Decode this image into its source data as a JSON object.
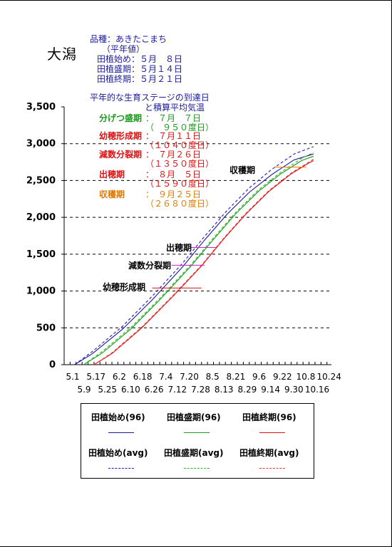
{
  "station": "大潟",
  "info": {
    "variety": "品種：あきたこまち",
    "normal": "（平年値）",
    "start": "田植始め：５月　８日",
    "peak": "田植盛期：５月１４日",
    "end": "田植終期：５月２１日"
  },
  "chart_subtitle": {
    "line1": "平年的な生育ステージの到達日",
    "line2": "と積算平均気温"
  },
  "stages": [
    {
      "name": "分げつ盛期",
      "date": "：　７月　７日",
      "gdd": "（　９５０度日）",
      "color": "#1a9a1a"
    },
    {
      "name": "幼穂形成期",
      "date": "：　７月１１日",
      "gdd": "（１０４０度日）",
      "color": "#dd1111"
    },
    {
      "name": "減数分裂期",
      "date": "：　７月２６日",
      "gdd": "（１３５０度日）",
      "color": "#dd1111"
    },
    {
      "name": "出穂期",
      "date": "：　８月　５日",
      "gdd": "（１５９０度日）",
      "color": "#dd1111"
    },
    {
      "name": "収穫期",
      "date": "：　９月２５日",
      "gdd": "（２６８０度日）",
      "color": "#e07a00"
    }
  ],
  "chart_data": {
    "type": "line",
    "ylim": [
      0,
      3500
    ],
    "ytick_labels": [
      "0",
      "500",
      "1,000",
      "1,500",
      "2,000",
      "2,500",
      "3,000",
      "3,500"
    ],
    "xtick_labels_top": [
      "5.1",
      "5.17",
      "6.2",
      "6.18",
      "7.4",
      "7.20",
      "8.5",
      "8.21",
      "9.6",
      "9.22",
      "10.8",
      "10.24"
    ],
    "xtick_labels_bottom": [
      "5.9",
      "5.25",
      "6.10",
      "6.26",
      "7.12",
      "7.28",
      "8.13",
      "8.29",
      "9.14",
      "9.30",
      "10.16"
    ],
    "x_unit": "day_of_year",
    "xlim": [
      121,
      300
    ],
    "series": [
      {
        "name": "田植始め(96)",
        "color": "#1a1a8c",
        "dash": false,
        "x": [
          128,
          140,
          160,
          180,
          200,
          215,
          230,
          245,
          260,
          275,
          288
        ],
        "y": [
          0,
          150,
          480,
          880,
          1320,
          1690,
          2040,
          2340,
          2580,
          2780,
          2860
        ]
      },
      {
        "name": "田植盛期(96)",
        "color": "#1a9a1a",
        "dash": false,
        "x": [
          134,
          146,
          166,
          186,
          206,
          221,
          236,
          251,
          266,
          280,
          288
        ],
        "y": [
          0,
          150,
          490,
          900,
          1340,
          1700,
          2050,
          2350,
          2590,
          2770,
          2830
        ]
      },
      {
        "name": "田植終期(96)",
        "color": "#dd1111",
        "dash": false,
        "x": [
          141,
          153,
          173,
          193,
          213,
          228,
          243,
          258,
          273,
          285,
          288
        ],
        "y": [
          0,
          150,
          500,
          910,
          1340,
          1710,
          2050,
          2350,
          2590,
          2740,
          2770
        ]
      },
      {
        "name": "田植始め(avg)",
        "color": "#1a1acc",
        "dash": true,
        "x": [
          128,
          140,
          160,
          180,
          200,
          215,
          230,
          245,
          260,
          275,
          288
        ],
        "y": [
          0,
          180,
          520,
          930,
          1370,
          1740,
          2090,
          2400,
          2650,
          2860,
          2960
        ]
      },
      {
        "name": "田植盛期(avg)",
        "color": "#22bb22",
        "dash": true,
        "x": [
          134,
          146,
          166,
          186,
          206,
          221,
          236,
          251,
          266,
          280,
          288
        ],
        "y": [
          0,
          170,
          510,
          920,
          1360,
          1720,
          2070,
          2370,
          2610,
          2800,
          2880
        ]
      },
      {
        "name": "田植終期(avg)",
        "color": "#ee3333",
        "dash": true,
        "x": [
          141,
          153,
          173,
          193,
          213,
          228,
          243,
          258,
          273,
          285,
          288
        ],
        "y": [
          0,
          160,
          510,
          920,
          1350,
          1720,
          2060,
          2360,
          2600,
          2750,
          2790
        ]
      }
    ],
    "dashed_levels": [
      500,
      1000,
      1500,
      2000,
      2500,
      3000
    ],
    "stage_markers": [
      {
        "label": "収穫期",
        "y": 2680,
        "x_from": 262,
        "x_to": 283,
        "color": "#e07a00"
      },
      {
        "label": "出穂期",
        "y": 1590,
        "x_from": 205,
        "x_to": 223,
        "color": "#cc22cc"
      },
      {
        "label": "減数分裂期",
        "y": 1350,
        "x_from": 193,
        "x_to": 215,
        "color": "#cc22cc"
      },
      {
        "label": "幼穂形成期",
        "y": 1040,
        "x_from": 180,
        "x_to": 213,
        "color": "#dd1111"
      }
    ]
  },
  "legend": {
    "items": [
      {
        "label": "田植始め(96)",
        "color": "#1a1a8c",
        "dash": false
      },
      {
        "label": "田植盛期(96)",
        "color": "#1a9a1a",
        "dash": false
      },
      {
        "label": "田植終期(96)",
        "color": "#dd1111",
        "dash": false
      },
      {
        "label": "田植始め(avg)",
        "color": "#1a1acc",
        "dash": true
      },
      {
        "label": "田植盛期(avg)",
        "color": "#22bb22",
        "dash": true
      },
      {
        "label": "田植終期(avg)",
        "color": "#ee3333",
        "dash": true
      }
    ]
  }
}
